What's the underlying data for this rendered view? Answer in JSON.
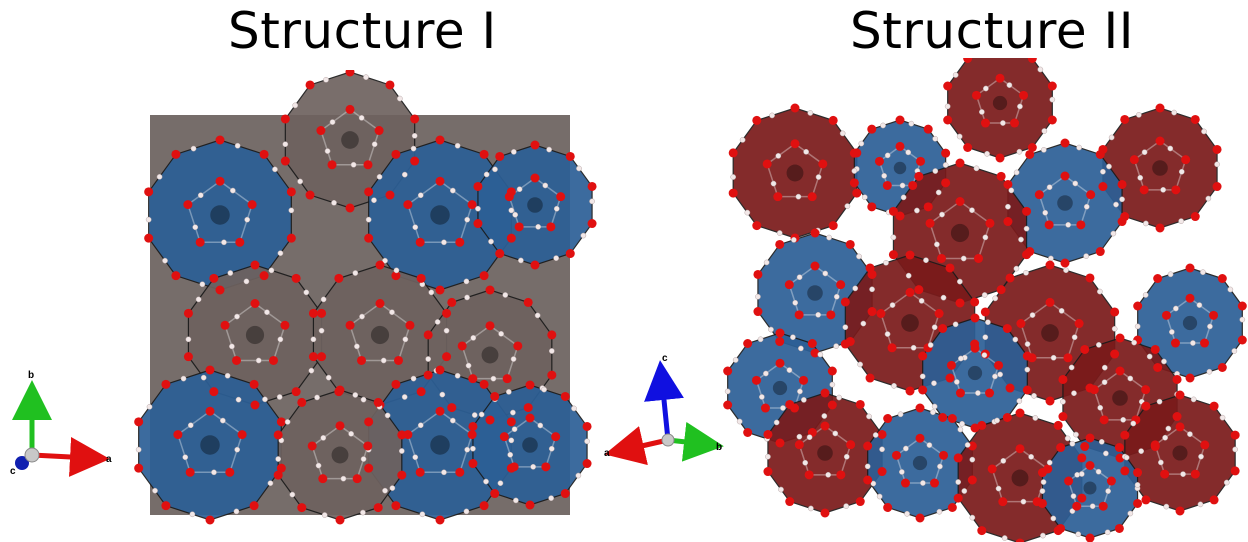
{
  "titles": [
    "Structure I",
    "Structure II"
  ],
  "axes_left": {
    "b": "b",
    "a": "a",
    "c": "c"
  },
  "axes_right": {
    "c": "c",
    "a": "a",
    "b": "b"
  },
  "colors": {
    "blue_cage": "#2c5f96",
    "grey_cage": "#6e625f",
    "red_cage": "#7a1a1a",
    "oxygen": "#e01010",
    "hydrogen": "#f2e8e8",
    "axis_a": "#e01010",
    "axis_b": "#20c020",
    "axis_c": "#1010e0"
  }
}
